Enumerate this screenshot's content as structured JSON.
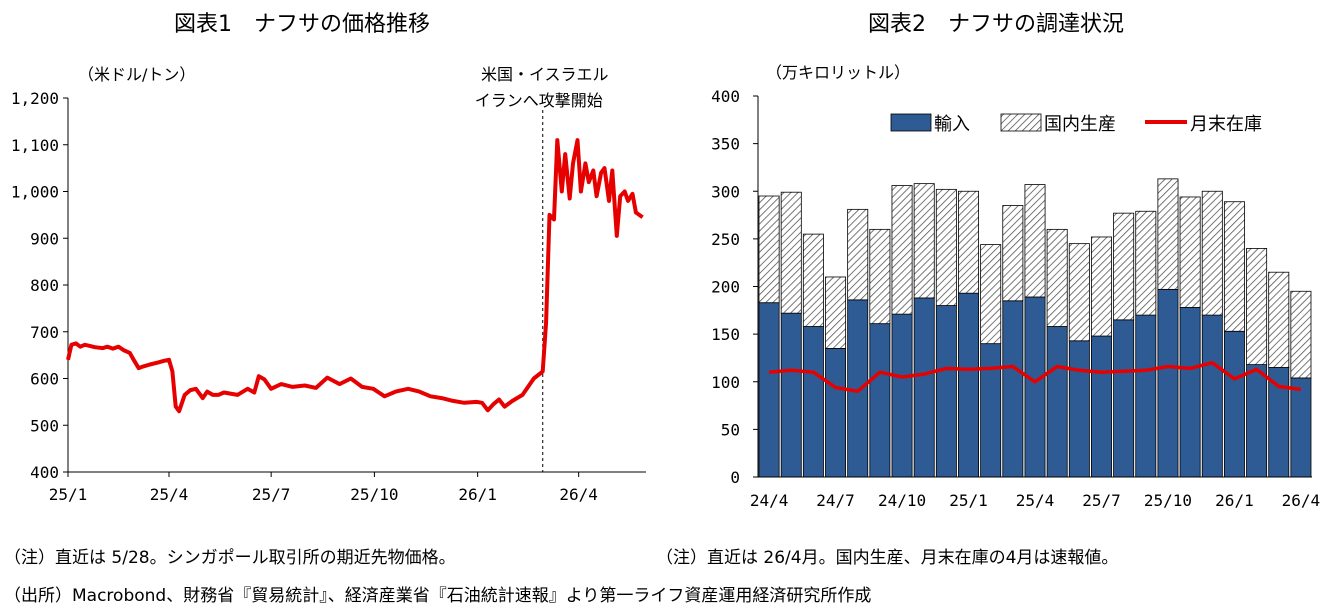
{
  "chart_data": [
    {
      "type": "line",
      "title": "図表1　ナフサの価格推移",
      "unit_label": "（米ドル/トン）",
      "ylim": [
        400,
        1200
      ],
      "y_ticks": [
        "400",
        "500",
        "600",
        "700",
        "800",
        "900",
        "1,000",
        "1,100",
        "1,200"
      ],
      "y_tick_values": [
        400,
        500,
        600,
        700,
        800,
        900,
        1000,
        1100,
        1200
      ],
      "x_tick_labels": [
        "25/1",
        "25/4",
        "25/7",
        "25/10",
        "26/1",
        "26/4"
      ],
      "x_tick_dates": [
        "2025-01-01",
        "2025-04-01",
        "2025-07-01",
        "2025-10-01",
        "2026-01-01",
        "2026-04-01"
      ],
      "xlim": [
        "2025-01-01",
        "2026-05-31"
      ],
      "line_color": "#e60000",
      "event": {
        "date": "2026-02-28",
        "label_line1": "米国・イスラエル",
        "label_line2": "イランへ攻撃開始"
      },
      "series": [
        {
          "x": [
            "2025-01-01",
            "2025-01-04",
            "2025-01-08",
            "2025-01-12",
            "2025-01-16",
            "2025-01-20",
            "2025-01-25",
            "2025-02-01",
            "2025-02-05",
            "2025-02-10",
            "2025-02-15",
            "2025-02-20",
            "2025-02-25",
            "2025-03-01",
            "2025-03-05",
            "2025-03-08",
            "2025-03-15",
            "2025-03-22",
            "2025-03-28",
            "2025-04-01",
            "2025-04-04",
            "2025-04-07",
            "2025-04-10",
            "2025-04-15",
            "2025-04-20",
            "2025-04-25",
            "2025-05-01",
            "2025-05-05",
            "2025-05-10",
            "2025-05-15",
            "2025-05-20",
            "2025-05-25",
            "2025-06-01",
            "2025-06-10",
            "2025-06-16",
            "2025-06-20",
            "2025-06-25",
            "2025-07-01",
            "2025-07-10",
            "2025-07-20",
            "2025-07-31",
            "2025-08-10",
            "2025-08-20",
            "2025-08-31",
            "2025-09-10",
            "2025-09-20",
            "2025-09-30",
            "2025-10-10",
            "2025-10-20",
            "2025-10-31",
            "2025-11-10",
            "2025-11-20",
            "2025-11-30",
            "2025-12-10",
            "2025-12-20",
            "2025-12-31",
            "2026-01-05",
            "2026-01-10",
            "2026-01-15",
            "2026-01-20",
            "2026-01-25",
            "2026-02-01",
            "2026-02-10",
            "2026-02-20",
            "2026-02-28",
            "2026-03-03",
            "2026-03-06",
            "2026-03-10",
            "2026-03-13",
            "2026-03-17",
            "2026-03-20",
            "2026-03-24",
            "2026-03-27",
            "2026-03-31",
            "2026-04-03",
            "2026-04-07",
            "2026-04-10",
            "2026-04-14",
            "2026-04-17",
            "2026-04-21",
            "2026-04-24",
            "2026-04-28",
            "2026-05-01",
            "2026-05-05",
            "2026-05-08",
            "2026-05-12",
            "2026-05-15",
            "2026-05-19",
            "2026-05-22",
            "2026-05-28"
          ],
          "y": [
            640,
            672,
            675,
            668,
            672,
            670,
            667,
            665,
            668,
            664,
            668,
            660,
            655,
            638,
            622,
            625,
            630,
            634,
            638,
            640,
            615,
            540,
            530,
            565,
            575,
            578,
            558,
            572,
            565,
            565,
            570,
            568,
            565,
            578,
            570,
            605,
            598,
            578,
            588,
            582,
            585,
            580,
            602,
            588,
            600,
            582,
            578,
            562,
            572,
            578,
            572,
            562,
            558,
            552,
            548,
            550,
            548,
            532,
            545,
            555,
            540,
            552,
            565,
            600,
            615,
            720,
            950,
            940,
            1110,
            1000,
            1080,
            985,
            1060,
            1110,
            1000,
            1060,
            1020,
            1045,
            990,
            1040,
            1050,
            980,
            1045,
            905,
            990,
            1000,
            980,
            995,
            955,
            945
          ]
        }
      ]
    },
    {
      "type": "bar",
      "subtype": "stacked-bar-with-line",
      "title": "図表2　ナフサの調達状況",
      "unit_label": "（万キロリットル）",
      "ylim": [
        0,
        400
      ],
      "y_ticks": [
        "0",
        "50",
        "100",
        "150",
        "200",
        "250",
        "300",
        "350",
        "400"
      ],
      "y_tick_values": [
        0,
        50,
        100,
        150,
        200,
        250,
        300,
        350,
        400
      ],
      "categories": [
        "24/4",
        "24/5",
        "24/6",
        "24/7",
        "24/8",
        "24/9",
        "24/10",
        "24/11",
        "24/12",
        "25/1",
        "25/2",
        "25/3",
        "25/4",
        "25/5",
        "25/6",
        "25/7",
        "25/8",
        "25/9",
        "25/10",
        "25/11",
        "25/12",
        "26/1",
        "26/2",
        "26/3",
        "26/4"
      ],
      "x_tick_labels": [
        "24/4",
        "24/7",
        "24/10",
        "25/1",
        "25/4",
        "25/7",
        "25/10",
        "26/1",
        "26/4"
      ],
      "x_tick_indices": [
        0,
        3,
        6,
        9,
        12,
        15,
        18,
        21,
        24
      ],
      "legend": [
        "輸入",
        "国内生産",
        "月末在庫"
      ],
      "colors": {
        "import": "#2e5b94",
        "domestic_hatch": "#555555",
        "inventory": "#e60000"
      },
      "series": [
        {
          "name": "輸入",
          "values": [
            183,
            172,
            158,
            135,
            186,
            161,
            171,
            188,
            180,
            193,
            140,
            185,
            189,
            158,
            143,
            148,
            165,
            170,
            197,
            178,
            170,
            153,
            118,
            115,
            104
          ]
        },
        {
          "name": "国内生産",
          "values": [
            112,
            127,
            97,
            75,
            95,
            99,
            135,
            120,
            122,
            107,
            104,
            100,
            118,
            102,
            102,
            104,
            112,
            109,
            116,
            116,
            130,
            136,
            122,
            100,
            91
          ]
        },
        {
          "name": "月末在庫",
          "values": [
            110,
            112,
            110,
            94,
            90,
            110,
            105,
            108,
            114,
            113,
            114,
            116,
            100,
            116,
            112,
            110,
            111,
            112,
            116,
            114,
            120,
            103,
            113,
            95,
            92
          ]
        }
      ]
    }
  ],
  "notes": {
    "note1": "（注）直近は 5/28。シンガポール取引所の期近先物価格。",
    "note2": "（注）直近は 26/4月。国内生産、月末在庫の4月は速報値。",
    "source": "（出所）Macrobond、財務省『貿易統計』、経済産業省『石油統計速報』より第一ライフ資産運用経済研究所作成"
  }
}
